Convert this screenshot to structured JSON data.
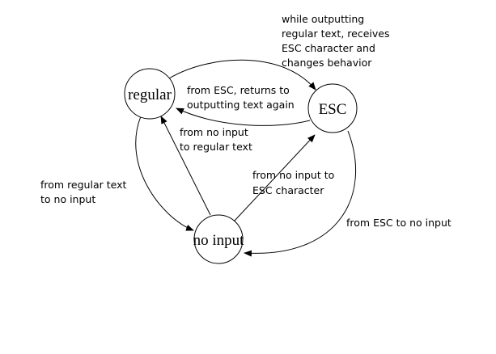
{
  "diagram": {
    "type": "state-machine",
    "colors": {
      "stroke": "#000000",
      "fill": "#ffffff",
      "text": "#000000"
    },
    "nodes": {
      "regular": {
        "label": "regular"
      },
      "esc": {
        "label": "ESC"
      },
      "no_input": {
        "label": "no input"
      }
    },
    "edges": {
      "regular_to_esc": {
        "from": "regular",
        "to": "esc",
        "lines": [
          "while outputting",
          "regular text, receives",
          "ESC character and",
          "changes behavior"
        ]
      },
      "esc_to_regular": {
        "from": "ESC",
        "to": "regular",
        "lines": [
          "from ESC, returns to",
          "outputting text again"
        ]
      },
      "no_input_to_regular": {
        "from": "no input",
        "to": "regular",
        "lines": [
          "from no input",
          "to regular text"
        ]
      },
      "no_input_to_esc": {
        "from": "no input",
        "to": "ESC",
        "lines": [
          "from no input to",
          "ESC character"
        ]
      },
      "regular_to_no_input": {
        "from": "regular",
        "to": "no input",
        "lines": [
          "from regular text",
          "to no input"
        ]
      },
      "esc_to_no_input": {
        "from": "ESC",
        "to": "no input",
        "lines": [
          "from ESC to no input"
        ]
      }
    }
  }
}
